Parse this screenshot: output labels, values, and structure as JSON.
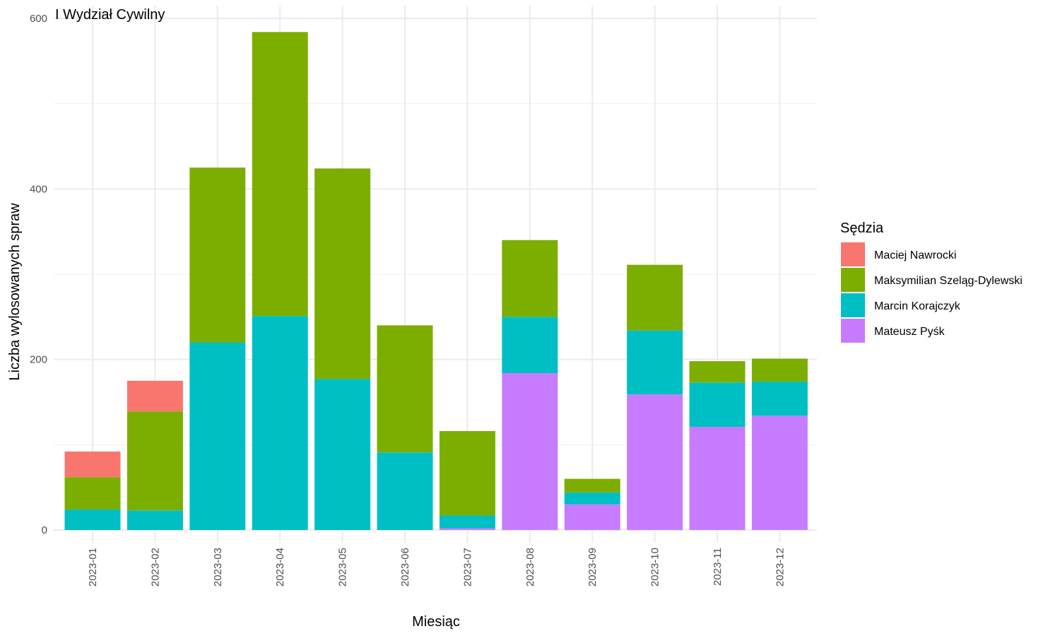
{
  "chart_data": {
    "type": "bar",
    "stacked": true,
    "title": "I Wydział Cywilny",
    "xlabel": "Miesiąc",
    "ylabel": "Liczba wylosowanych spraw",
    "ylim": [
      0,
      600
    ],
    "yticks": [
      0,
      200,
      400,
      600
    ],
    "grid": true,
    "legend_title": "Sędzia",
    "legend_position": "right",
    "categories": [
      "2023-01",
      "2023-02",
      "2023-03",
      "2023-04",
      "2023-05",
      "2023-06",
      "2023-07",
      "2023-08",
      "2023-09",
      "2023-10",
      "2023-11",
      "2023-12"
    ],
    "series": [
      {
        "name": "Maciej Nawrocki",
        "color": "#F8766D",
        "values": [
          30,
          36,
          0,
          0,
          0,
          0,
          0,
          0,
          0,
          0,
          0,
          0
        ]
      },
      {
        "name": "Maksymilian Szeląg-Dylewski",
        "color": "#7CAE00",
        "values": [
          38,
          116,
          205,
          333,
          247,
          149,
          99,
          90,
          16,
          77,
          25,
          27
        ]
      },
      {
        "name": "Marcin Korajczyk",
        "color": "#00BFC4",
        "values": [
          24,
          23,
          220,
          251,
          177,
          91,
          15,
          66,
          14,
          75,
          52,
          40
        ]
      },
      {
        "name": "Mateusz Pyśk",
        "color": "#C77CFF",
        "values": [
          0,
          0,
          0,
          0,
          0,
          0,
          2,
          184,
          30,
          159,
          121,
          134
        ]
      }
    ]
  }
}
